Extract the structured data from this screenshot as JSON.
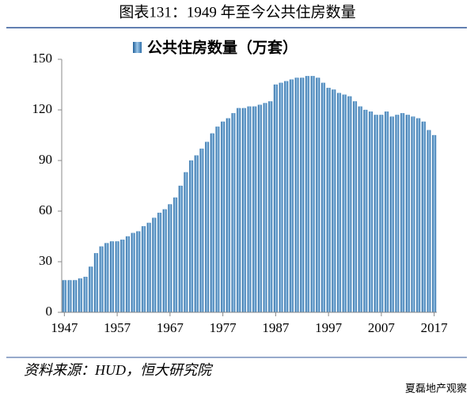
{
  "chart_data": {
    "type": "bar",
    "title": "图表131：1949 年至今公共住房数量",
    "source": "资料来源：HUD，恒大研究院",
    "watermark": "夏磊地产观察",
    "categories": [
      "1947",
      null,
      null,
      null,
      null,
      null,
      null,
      null,
      null,
      null,
      "1957",
      null,
      null,
      null,
      null,
      null,
      null,
      null,
      null,
      null,
      "1967",
      null,
      null,
      null,
      null,
      null,
      null,
      null,
      null,
      null,
      "1977",
      null,
      null,
      null,
      null,
      null,
      null,
      null,
      null,
      null,
      "1987",
      null,
      null,
      null,
      null,
      null,
      null,
      null,
      null,
      null,
      "1997",
      null,
      null,
      null,
      null,
      null,
      null,
      null,
      null,
      null,
      "2007",
      null,
      null,
      null,
      null,
      null,
      null,
      null,
      null,
      null,
      "2017"
    ],
    "series": [
      {
        "name": "公共住房数量（万套）",
        "color": "#4a8cc2",
        "values": [
          19,
          19,
          19,
          20,
          21,
          27,
          35,
          39,
          41,
          42,
          42,
          43,
          45,
          47,
          48,
          51,
          53,
          56,
          59,
          61,
          64,
          68,
          75,
          83,
          90,
          93,
          97,
          101,
          106,
          110,
          113,
          115,
          118,
          121,
          121,
          122,
          122,
          123,
          124,
          125,
          135,
          136,
          137,
          138,
          139,
          139,
          140,
          140,
          139,
          136,
          133,
          132,
          130,
          129,
          128,
          125,
          122,
          120,
          119,
          117,
          117,
          119,
          116,
          117,
          118,
          117,
          116,
          115,
          113,
          108,
          105
        ]
      }
    ],
    "ylim": [
      0,
      150
    ],
    "yticks": [
      0,
      30,
      60,
      90,
      120,
      150
    ],
    "legend": "top"
  }
}
